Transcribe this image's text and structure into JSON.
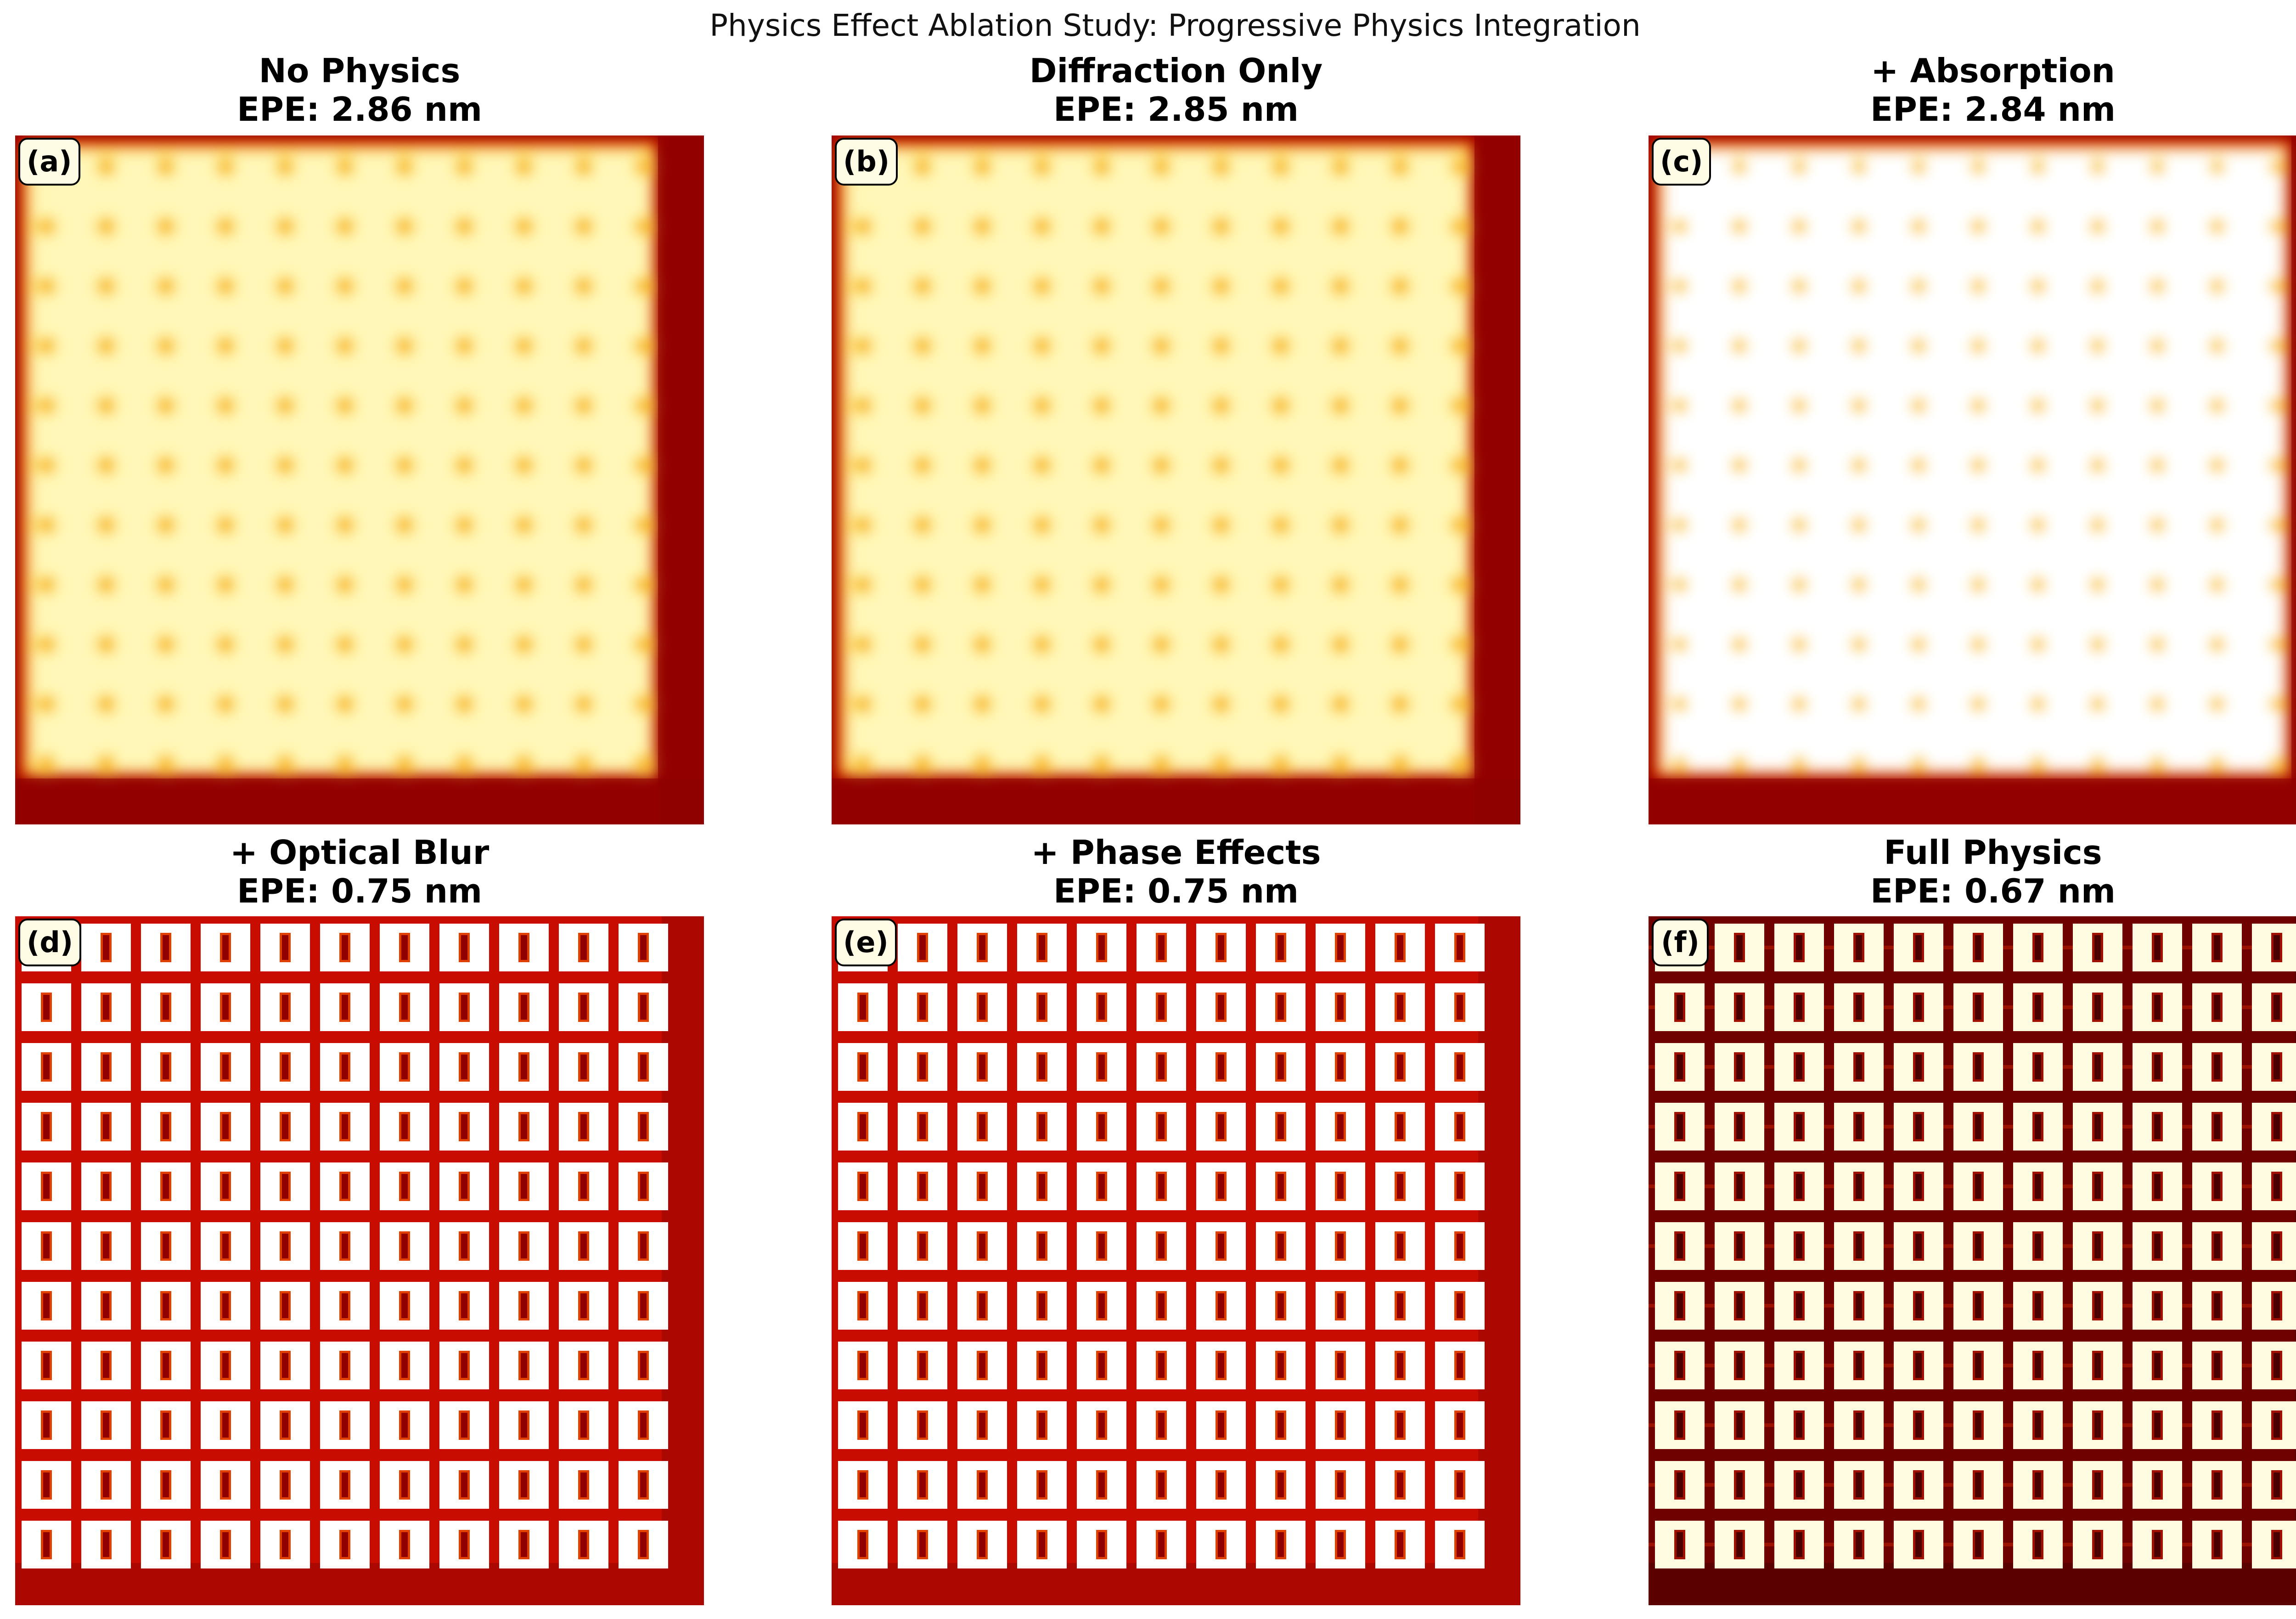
{
  "figure": {
    "title": "Physics Effect Ablation Study: Progressive Physics Integration"
  },
  "chart_data": {
    "type": "heatmap",
    "colormap": "hot",
    "grid": false,
    "axes_visible": false,
    "panels": [
      {
        "id": "a",
        "label": "(a)",
        "title": "No Physics",
        "epe_text": "EPE: 2.86 nm",
        "epe_nm": 2.86,
        "pattern": "diffuse",
        "tint": "#f5aa10"
      },
      {
        "id": "b",
        "label": "(b)",
        "title": "Diffraction Only",
        "epe_text": "EPE: 2.85 nm",
        "epe_nm": 2.85,
        "pattern": "diffuse",
        "tint": "#f5aa10"
      },
      {
        "id": "c",
        "label": "(c)",
        "title": "+ Absorption",
        "epe_text": "EPE: 2.84 nm",
        "epe_nm": 2.84,
        "pattern": "diffuse-bright",
        "tint": "#f5aa10"
      },
      {
        "id": "d",
        "label": "(d)",
        "title": "+ Optical Blur",
        "epe_text": "EPE: 0.75 nm",
        "epe_nm": 0.75,
        "pattern": "sharp",
        "tint": "#c40c00"
      },
      {
        "id": "e",
        "label": "(e)",
        "title": "+ Phase Effects",
        "epe_text": "EPE: 0.75 nm",
        "epe_nm": 0.75,
        "pattern": "sharp",
        "tint": "#c40c00"
      },
      {
        "id": "f",
        "label": "(f)",
        "title": "Full Physics",
        "epe_text": "EPE: 0.67 nm",
        "epe_nm": 0.67,
        "pattern": "sharp-dark",
        "tint": "#7a0000"
      }
    ]
  }
}
